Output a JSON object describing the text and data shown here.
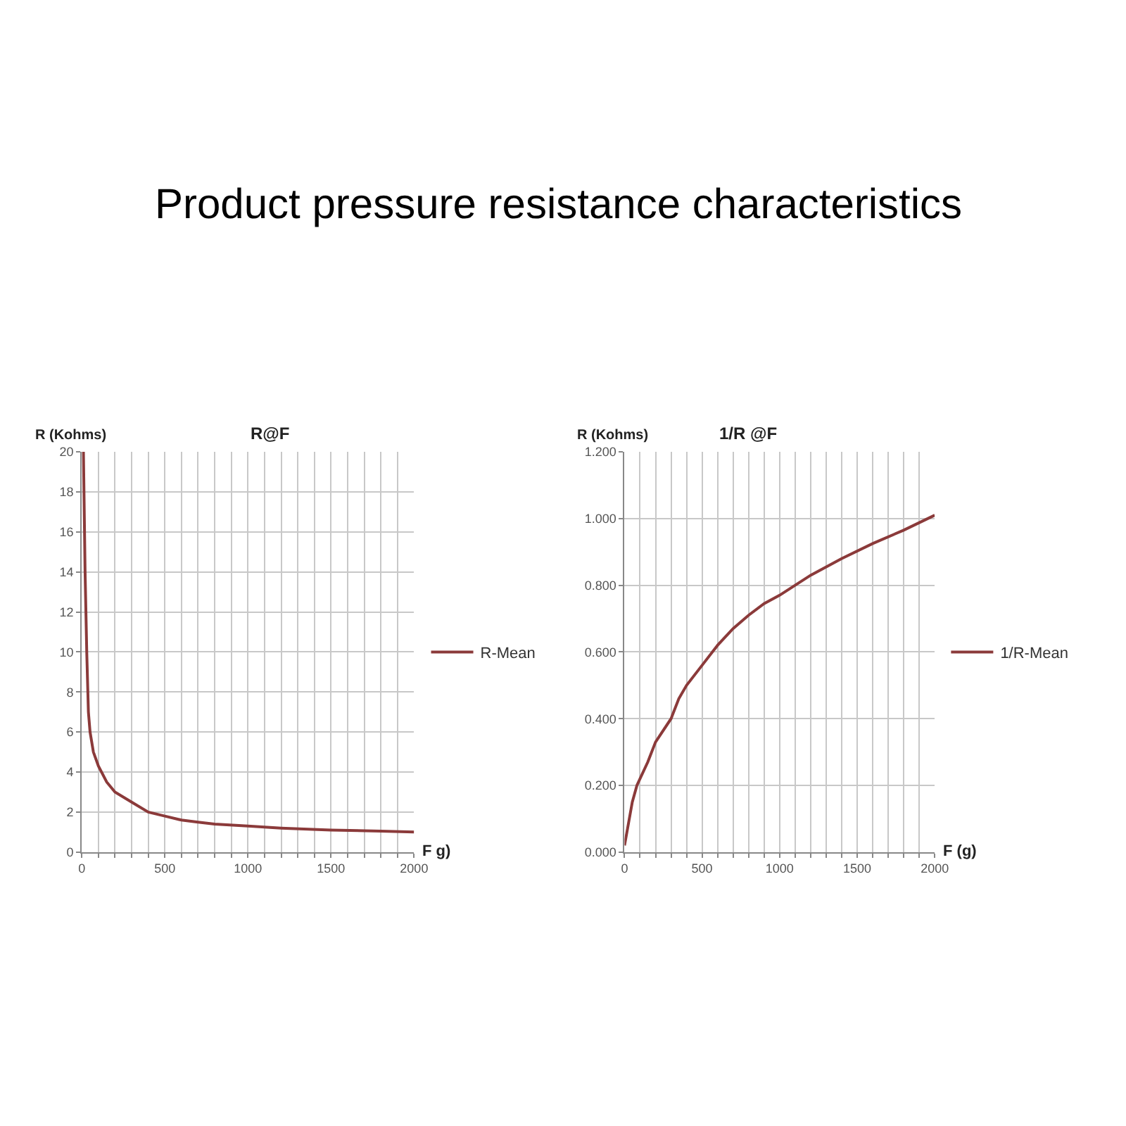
{
  "chart_data": [
    {
      "type": "other",
      "title": "Product pressure resistance characteristics"
    },
    {
      "type": "line",
      "title": "R@F",
      "xlabel": "F g)",
      "ylabel": "R (Kohms)",
      "grid": true,
      "legend": "right",
      "marker": "none",
      "line_style": "solid",
      "xlim": [
        0,
        2000
      ],
      "ylim": [
        0,
        20
      ],
      "xticks": [
        0,
        {
          "value": 100,
          "label": null
        },
        {
          "value": 200,
          "label": null
        },
        {
          "value": 300,
          "label": null
        },
        {
          "value": 400,
          "label": null
        },
        500,
        {
          "value": 600,
          "label": null
        },
        {
          "value": 700,
          "label": null
        },
        {
          "value": 800,
          "label": null
        },
        {
          "value": 900,
          "label": null
        },
        1000,
        {
          "value": 1100,
          "label": null
        },
        {
          "value": 1200,
          "label": null
        },
        {
          "value": 1300,
          "label": null
        },
        {
          "value": 1400,
          "label": null
        },
        1500,
        {
          "value": 1600,
          "label": null
        },
        {
          "value": 1700,
          "label": null
        },
        {
          "value": 1800,
          "label": null
        },
        {
          "value": 1900,
          "label": null
        },
        2000
      ],
      "yticks": [
        0,
        2,
        4,
        6,
        8,
        10,
        12,
        14,
        16,
        18,
        20
      ],
      "x": [
        10,
        20,
        30,
        40,
        50,
        70,
        100,
        150,
        200,
        300,
        400,
        500,
        600,
        700,
        800,
        1000,
        1200,
        1500,
        1800,
        2000
      ],
      "series": [
        {
          "name": "R-Mean",
          "color": "#8b3a3a",
          "values": [
            20,
            14,
            10,
            7,
            6,
            5,
            4.3,
            3.5,
            3.0,
            2.5,
            2.0,
            1.8,
            1.6,
            1.5,
            1.4,
            1.3,
            1.2,
            1.1,
            1.05,
            1.0
          ]
        }
      ]
    },
    {
      "type": "line",
      "title": "1/R @F",
      "xlabel": "F (g)",
      "ylabel": "R (Kohms)",
      "grid": true,
      "legend": "right",
      "marker": "none",
      "line_style": "solid",
      "xlim": [
        0,
        2000
      ],
      "ylim": [
        0,
        1.2
      ],
      "xticks": [
        0,
        {
          "value": 100,
          "label": null
        },
        {
          "value": 200,
          "label": null
        },
        {
          "value": 300,
          "label": null
        },
        {
          "value": 400,
          "label": null
        },
        500,
        {
          "value": 600,
          "label": null
        },
        {
          "value": 700,
          "label": null
        },
        {
          "value": 800,
          "label": null
        },
        {
          "value": 900,
          "label": null
        },
        1000,
        {
          "value": 1100,
          "label": null
        },
        {
          "value": 1200,
          "label": null
        },
        {
          "value": 1300,
          "label": null
        },
        {
          "value": 1400,
          "label": null
        },
        1500,
        {
          "value": 1600,
          "label": null
        },
        {
          "value": 1700,
          "label": null
        },
        {
          "value": 1800,
          "label": null
        },
        {
          "value": 1900,
          "label": null
        },
        2000
      ],
      "yticks": [
        {
          "value": 0,
          "label": "0.000"
        },
        {
          "value": 0.2,
          "label": "0.200"
        },
        {
          "value": 0.4,
          "label": "0.400"
        },
        {
          "value": 0.6,
          "label": "0.600"
        },
        {
          "value": 0.8,
          "label": "0.800"
        },
        {
          "value": 1.0,
          "label": "1.000"
        },
        {
          "value": 1.2,
          "label": "1.200"
        }
      ],
      "x": [
        0,
        50,
        80,
        150,
        200,
        300,
        350,
        400,
        500,
        600,
        700,
        800,
        900,
        1000,
        1100,
        1200,
        1400,
        1600,
        1800,
        2000
      ],
      "series": [
        {
          "name": "1/R-Mean",
          "color": "#8b3a3a",
          "values": [
            0.02,
            0.15,
            0.2,
            0.27,
            0.33,
            0.4,
            0.46,
            0.5,
            0.56,
            0.62,
            0.67,
            0.71,
            0.745,
            0.77,
            0.8,
            0.83,
            0.88,
            0.925,
            0.965,
            1.01
          ]
        }
      ]
    }
  ]
}
